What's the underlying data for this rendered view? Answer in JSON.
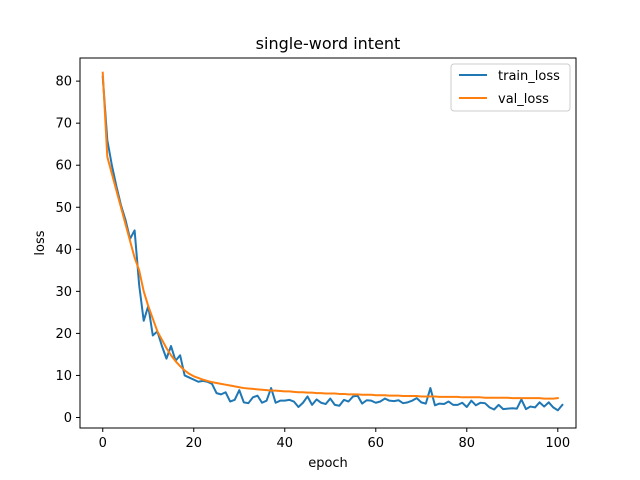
{
  "chart_data": {
    "type": "line",
    "title": "single-word intent",
    "xlabel": "epoch",
    "ylabel": "loss",
    "xlim": [
      -5,
      104
    ],
    "ylim": [
      -2.5,
      85.5
    ],
    "xticks": [
      0,
      20,
      40,
      60,
      80,
      100
    ],
    "yticks": [
      0,
      10,
      20,
      30,
      40,
      50,
      60,
      70,
      80
    ],
    "grid": false,
    "legend_position": "top-right",
    "series": [
      {
        "name": "train_loss",
        "color": "#1f77b4",
        "values": [
          81.0,
          66.0,
          60.0,
          55.0,
          50.5,
          47.0,
          42.5,
          44.5,
          31.5,
          23.0,
          26.5,
          19.5,
          20.5,
          17.0,
          14.0,
          17.0,
          13.5,
          14.8,
          10.0,
          9.5,
          9.0,
          8.5,
          8.7,
          8.5,
          8.0,
          5.8,
          5.5,
          6.0,
          3.8,
          4.2,
          6.5,
          3.6,
          3.4,
          4.8,
          5.2,
          3.5,
          4.0,
          7.0,
          3.5,
          4.0,
          4.0,
          4.2,
          3.8,
          2.5,
          3.5,
          5.0,
          3.0,
          4.3,
          3.5,
          3.2,
          4.5,
          3.0,
          2.8,
          4.2,
          3.8,
          5.0,
          5.2,
          3.3,
          4.1,
          4.0,
          3.5,
          3.8,
          4.5,
          4.0,
          3.9,
          4.1,
          3.4,
          3.6,
          4.0,
          4.6,
          3.6,
          3.3,
          7.0,
          2.9,
          3.3,
          3.2,
          3.8,
          3.0,
          3.0,
          3.5,
          2.5,
          4.0,
          2.9,
          3.5,
          3.4,
          2.4,
          1.9,
          3.0,
          2.0,
          2.1,
          2.2,
          2.1,
          4.3,
          2.0,
          2.6,
          2.4,
          3.6,
          2.6,
          3.6,
          2.4,
          1.7,
          3.0
        ]
      },
      {
        "name": "val_loss",
        "color": "#ff7f0e",
        "values": [
          82.0,
          62.0,
          58.0,
          54.0,
          50.0,
          46.0,
          42.0,
          38.0,
          35.0,
          30.0,
          26.5,
          23.5,
          20.5,
          18.5,
          16.5,
          14.8,
          13.4,
          12.2,
          11.2,
          10.4,
          9.8,
          9.4,
          9.0,
          8.7,
          8.4,
          8.2,
          8.0,
          7.8,
          7.6,
          7.4,
          7.2,
          7.0,
          6.9,
          6.8,
          6.7,
          6.6,
          6.5,
          6.4,
          6.4,
          6.3,
          6.2,
          6.2,
          6.1,
          6.0,
          6.0,
          5.9,
          5.9,
          5.8,
          5.8,
          5.7,
          5.7,
          5.7,
          5.6,
          5.6,
          5.5,
          5.5,
          5.5,
          5.4,
          5.4,
          5.4,
          5.3,
          5.3,
          5.3,
          5.2,
          5.2,
          5.2,
          5.1,
          5.1,
          5.1,
          5.1,
          5.0,
          5.0,
          5.0,
          5.0,
          4.9,
          4.9,
          4.9,
          4.9,
          4.9,
          4.8,
          4.8,
          4.8,
          4.8,
          4.8,
          4.7,
          4.7,
          4.7,
          4.7,
          4.7,
          4.7,
          4.6,
          4.6,
          4.6,
          4.6,
          4.6,
          4.6,
          4.6,
          4.5,
          4.5,
          4.5,
          4.6
        ]
      }
    ]
  }
}
